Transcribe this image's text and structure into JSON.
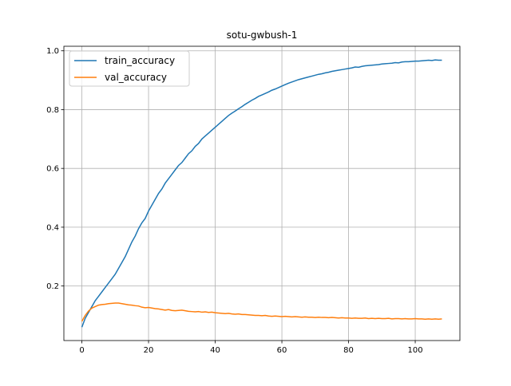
{
  "chart_data": {
    "type": "line",
    "title": "sotu-gwbush-1",
    "x": [
      0,
      1,
      2,
      3,
      4,
      5,
      6,
      7,
      8,
      9,
      10,
      11,
      12,
      13,
      14,
      15,
      16,
      17,
      18,
      19,
      20,
      21,
      22,
      23,
      24,
      25,
      26,
      27,
      28,
      29,
      30,
      31,
      32,
      33,
      34,
      35,
      36,
      37,
      38,
      39,
      40,
      41,
      42,
      43,
      44,
      45,
      46,
      47,
      48,
      49,
      50,
      51,
      52,
      53,
      54,
      55,
      56,
      57,
      58,
      59,
      60,
      61,
      62,
      63,
      64,
      65,
      66,
      67,
      68,
      69,
      70,
      71,
      72,
      73,
      74,
      75,
      76,
      77,
      78,
      79,
      80,
      81,
      82,
      83,
      84,
      85,
      86,
      87,
      88,
      89,
      90,
      91,
      92,
      93,
      94,
      95,
      96,
      97,
      98,
      99,
      100,
      101,
      102,
      103,
      104,
      105,
      106,
      107,
      108
    ],
    "series": [
      {
        "name": "train_accuracy",
        "color": "#1f77b4",
        "values": [
          0.06,
          0.09,
          0.11,
          0.13,
          0.15,
          0.165,
          0.18,
          0.195,
          0.21,
          0.225,
          0.24,
          0.26,
          0.28,
          0.3,
          0.325,
          0.35,
          0.37,
          0.395,
          0.415,
          0.43,
          0.455,
          0.475,
          0.495,
          0.515,
          0.53,
          0.55,
          0.565,
          0.58,
          0.595,
          0.61,
          0.62,
          0.635,
          0.65,
          0.66,
          0.675,
          0.685,
          0.7,
          0.71,
          0.72,
          0.73,
          0.74,
          0.75,
          0.76,
          0.77,
          0.78,
          0.788,
          0.795,
          0.803,
          0.81,
          0.818,
          0.825,
          0.832,
          0.838,
          0.845,
          0.85,
          0.855,
          0.86,
          0.866,
          0.87,
          0.875,
          0.88,
          0.885,
          0.89,
          0.894,
          0.898,
          0.902,
          0.905,
          0.908,
          0.911,
          0.914,
          0.917,
          0.92,
          0.922,
          0.925,
          0.927,
          0.93,
          0.932,
          0.934,
          0.936,
          0.938,
          0.94,
          0.942,
          0.945,
          0.944,
          0.947,
          0.949,
          0.95,
          0.951,
          0.952,
          0.953,
          0.955,
          0.956,
          0.957,
          0.958,
          0.96,
          0.959,
          0.962,
          0.963,
          0.963,
          0.964,
          0.965,
          0.965,
          0.966,
          0.967,
          0.968,
          0.967,
          0.969,
          0.968,
          0.968
        ]
      },
      {
        "name": "val_accuracy",
        "color": "#ff7f0e",
        "values": [
          0.08,
          0.1,
          0.115,
          0.125,
          0.13,
          0.135,
          0.137,
          0.138,
          0.14,
          0.141,
          0.142,
          0.142,
          0.14,
          0.138,
          0.136,
          0.135,
          0.133,
          0.132,
          0.128,
          0.126,
          0.127,
          0.125,
          0.123,
          0.122,
          0.12,
          0.118,
          0.12,
          0.117,
          0.116,
          0.117,
          0.118,
          0.116,
          0.114,
          0.113,
          0.112,
          0.113,
          0.111,
          0.112,
          0.11,
          0.111,
          0.109,
          0.108,
          0.107,
          0.106,
          0.107,
          0.105,
          0.104,
          0.105,
          0.103,
          0.103,
          0.102,
          0.101,
          0.1,
          0.1,
          0.099,
          0.1,
          0.098,
          0.097,
          0.098,
          0.097,
          0.096,
          0.097,
          0.096,
          0.095,
          0.096,
          0.095,
          0.094,
          0.095,
          0.094,
          0.094,
          0.093,
          0.094,
          0.093,
          0.093,
          0.092,
          0.093,
          0.092,
          0.091,
          0.092,
          0.091,
          0.091,
          0.09,
          0.091,
          0.09,
          0.09,
          0.091,
          0.089,
          0.09,
          0.089,
          0.09,
          0.089,
          0.089,
          0.09,
          0.088,
          0.089,
          0.089,
          0.088,
          0.089,
          0.088,
          0.088,
          0.089,
          0.088,
          0.088,
          0.087,
          0.088,
          0.087,
          0.088,
          0.087,
          0.088
        ]
      }
    ],
    "xlim": [
      -5.4,
      113.4
    ],
    "ylim": [
      0.0145,
      1.0155
    ],
    "xticks": [
      0,
      20,
      40,
      60,
      80,
      100
    ],
    "yticks": [
      0.2,
      0.4,
      0.6,
      0.8,
      {
        "value": 1,
        "label": "1.0"
      }
    ],
    "grid": true,
    "legend": "upper-left"
  }
}
